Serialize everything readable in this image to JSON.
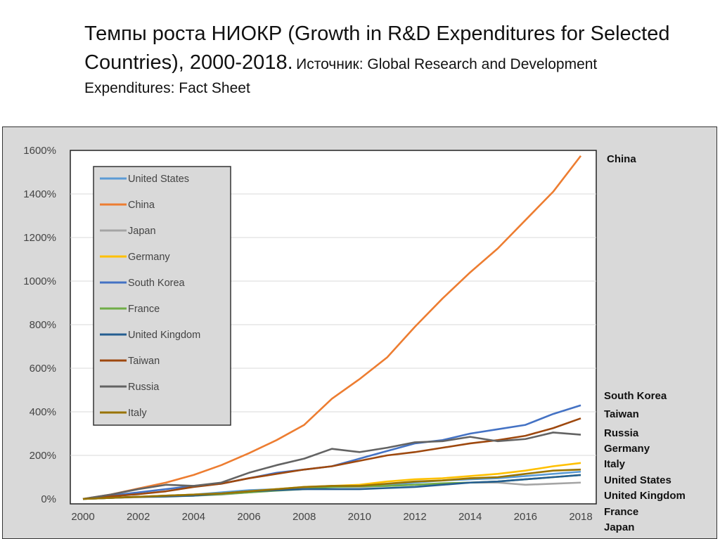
{
  "title": {
    "main": "Темпы роста НИОКР (Growth in R&D Expenditures for Selected Countries), 2000-2018.",
    "source_label": "Источник: Global Research and Development",
    "source_line2": "Expenditures: Fact Sheet"
  },
  "chart_data": {
    "type": "line",
    "title": "",
    "xlabel": "",
    "ylabel": "",
    "x": [
      2000,
      2001,
      2002,
      2003,
      2004,
      2005,
      2006,
      2007,
      2008,
      2009,
      2010,
      2011,
      2012,
      2013,
      2014,
      2015,
      2016,
      2017,
      2018
    ],
    "xticks": [
      "2000",
      "2002",
      "2004",
      "2006",
      "2008",
      "2010",
      "2012",
      "2014",
      "2016",
      "2018"
    ],
    "yticks": [
      "0%",
      "200%",
      "400%",
      "600%",
      "800%",
      "1000%",
      "1200%",
      "1400%",
      "1600%"
    ],
    "ylim": [
      0,
      1600
    ],
    "grid": "horizontal",
    "legend": "top-left",
    "series": [
      {
        "name": "United States",
        "color": "#5b9bd5",
        "values": [
          0,
          5,
          10,
          15,
          20,
          30,
          40,
          45,
          50,
          55,
          60,
          65,
          75,
          85,
          90,
          95,
          105,
          115,
          125
        ]
      },
      {
        "name": "China",
        "color": "#ed7d31",
        "values": [
          0,
          20,
          48,
          75,
          110,
          155,
          210,
          270,
          340,
          460,
          550,
          650,
          790,
          920,
          1040,
          1150,
          1280,
          1410,
          1575
        ]
      },
      {
        "name": "Japan",
        "color": "#a5a5a5",
        "values": [
          0,
          5,
          8,
          10,
          15,
          20,
          30,
          40,
          50,
          55,
          55,
          60,
          65,
          70,
          75,
          75,
          65,
          70,
          75
        ]
      },
      {
        "name": "Germany",
        "color": "#ffc000",
        "values": [
          0,
          5,
          10,
          15,
          20,
          25,
          35,
          45,
          55,
          60,
          65,
          80,
          90,
          95,
          105,
          115,
          130,
          150,
          165
        ]
      },
      {
        "name": "South Korea",
        "color": "#4472c4",
        "values": [
          0,
          15,
          30,
          45,
          60,
          70,
          95,
          120,
          135,
          150,
          185,
          220,
          255,
          270,
          300,
          320,
          340,
          390,
          430
        ]
      },
      {
        "name": "France",
        "color": "#70ad47",
        "values": [
          0,
          5,
          10,
          12,
          15,
          22,
          30,
          38,
          45,
          55,
          58,
          60,
          65,
          72,
          75,
          80,
          90,
          100,
          110
        ]
      },
      {
        "name": "United Kingdom",
        "color": "#255e91",
        "values": [
          0,
          5,
          10,
          12,
          15,
          25,
          35,
          40,
          45,
          45,
          45,
          50,
          55,
          65,
          75,
          80,
          90,
          100,
          110
        ]
      },
      {
        "name": "Taiwan",
        "color": "#9e480e",
        "values": [
          0,
          12,
          22,
          35,
          55,
          70,
          95,
          115,
          135,
          150,
          175,
          200,
          215,
          235,
          255,
          270,
          290,
          325,
          370
        ]
      },
      {
        "name": "Russia",
        "color": "#636363",
        "values": [
          0,
          20,
          45,
          65,
          60,
          75,
          120,
          155,
          185,
          230,
          215,
          235,
          260,
          265,
          285,
          265,
          275,
          305,
          295
        ]
      },
      {
        "name": "Italy",
        "color": "#997300",
        "values": [
          0,
          5,
          10,
          15,
          20,
          25,
          35,
          45,
          55,
          60,
          60,
          70,
          80,
          85,
          95,
          100,
          115,
          130,
          135
        ]
      }
    ],
    "right_labels": [
      "China",
      "South Korea",
      "Taiwan",
      "Russia",
      "Germany",
      "Italy",
      "United States",
      "United Kingdom",
      "France",
      "Japan"
    ]
  }
}
